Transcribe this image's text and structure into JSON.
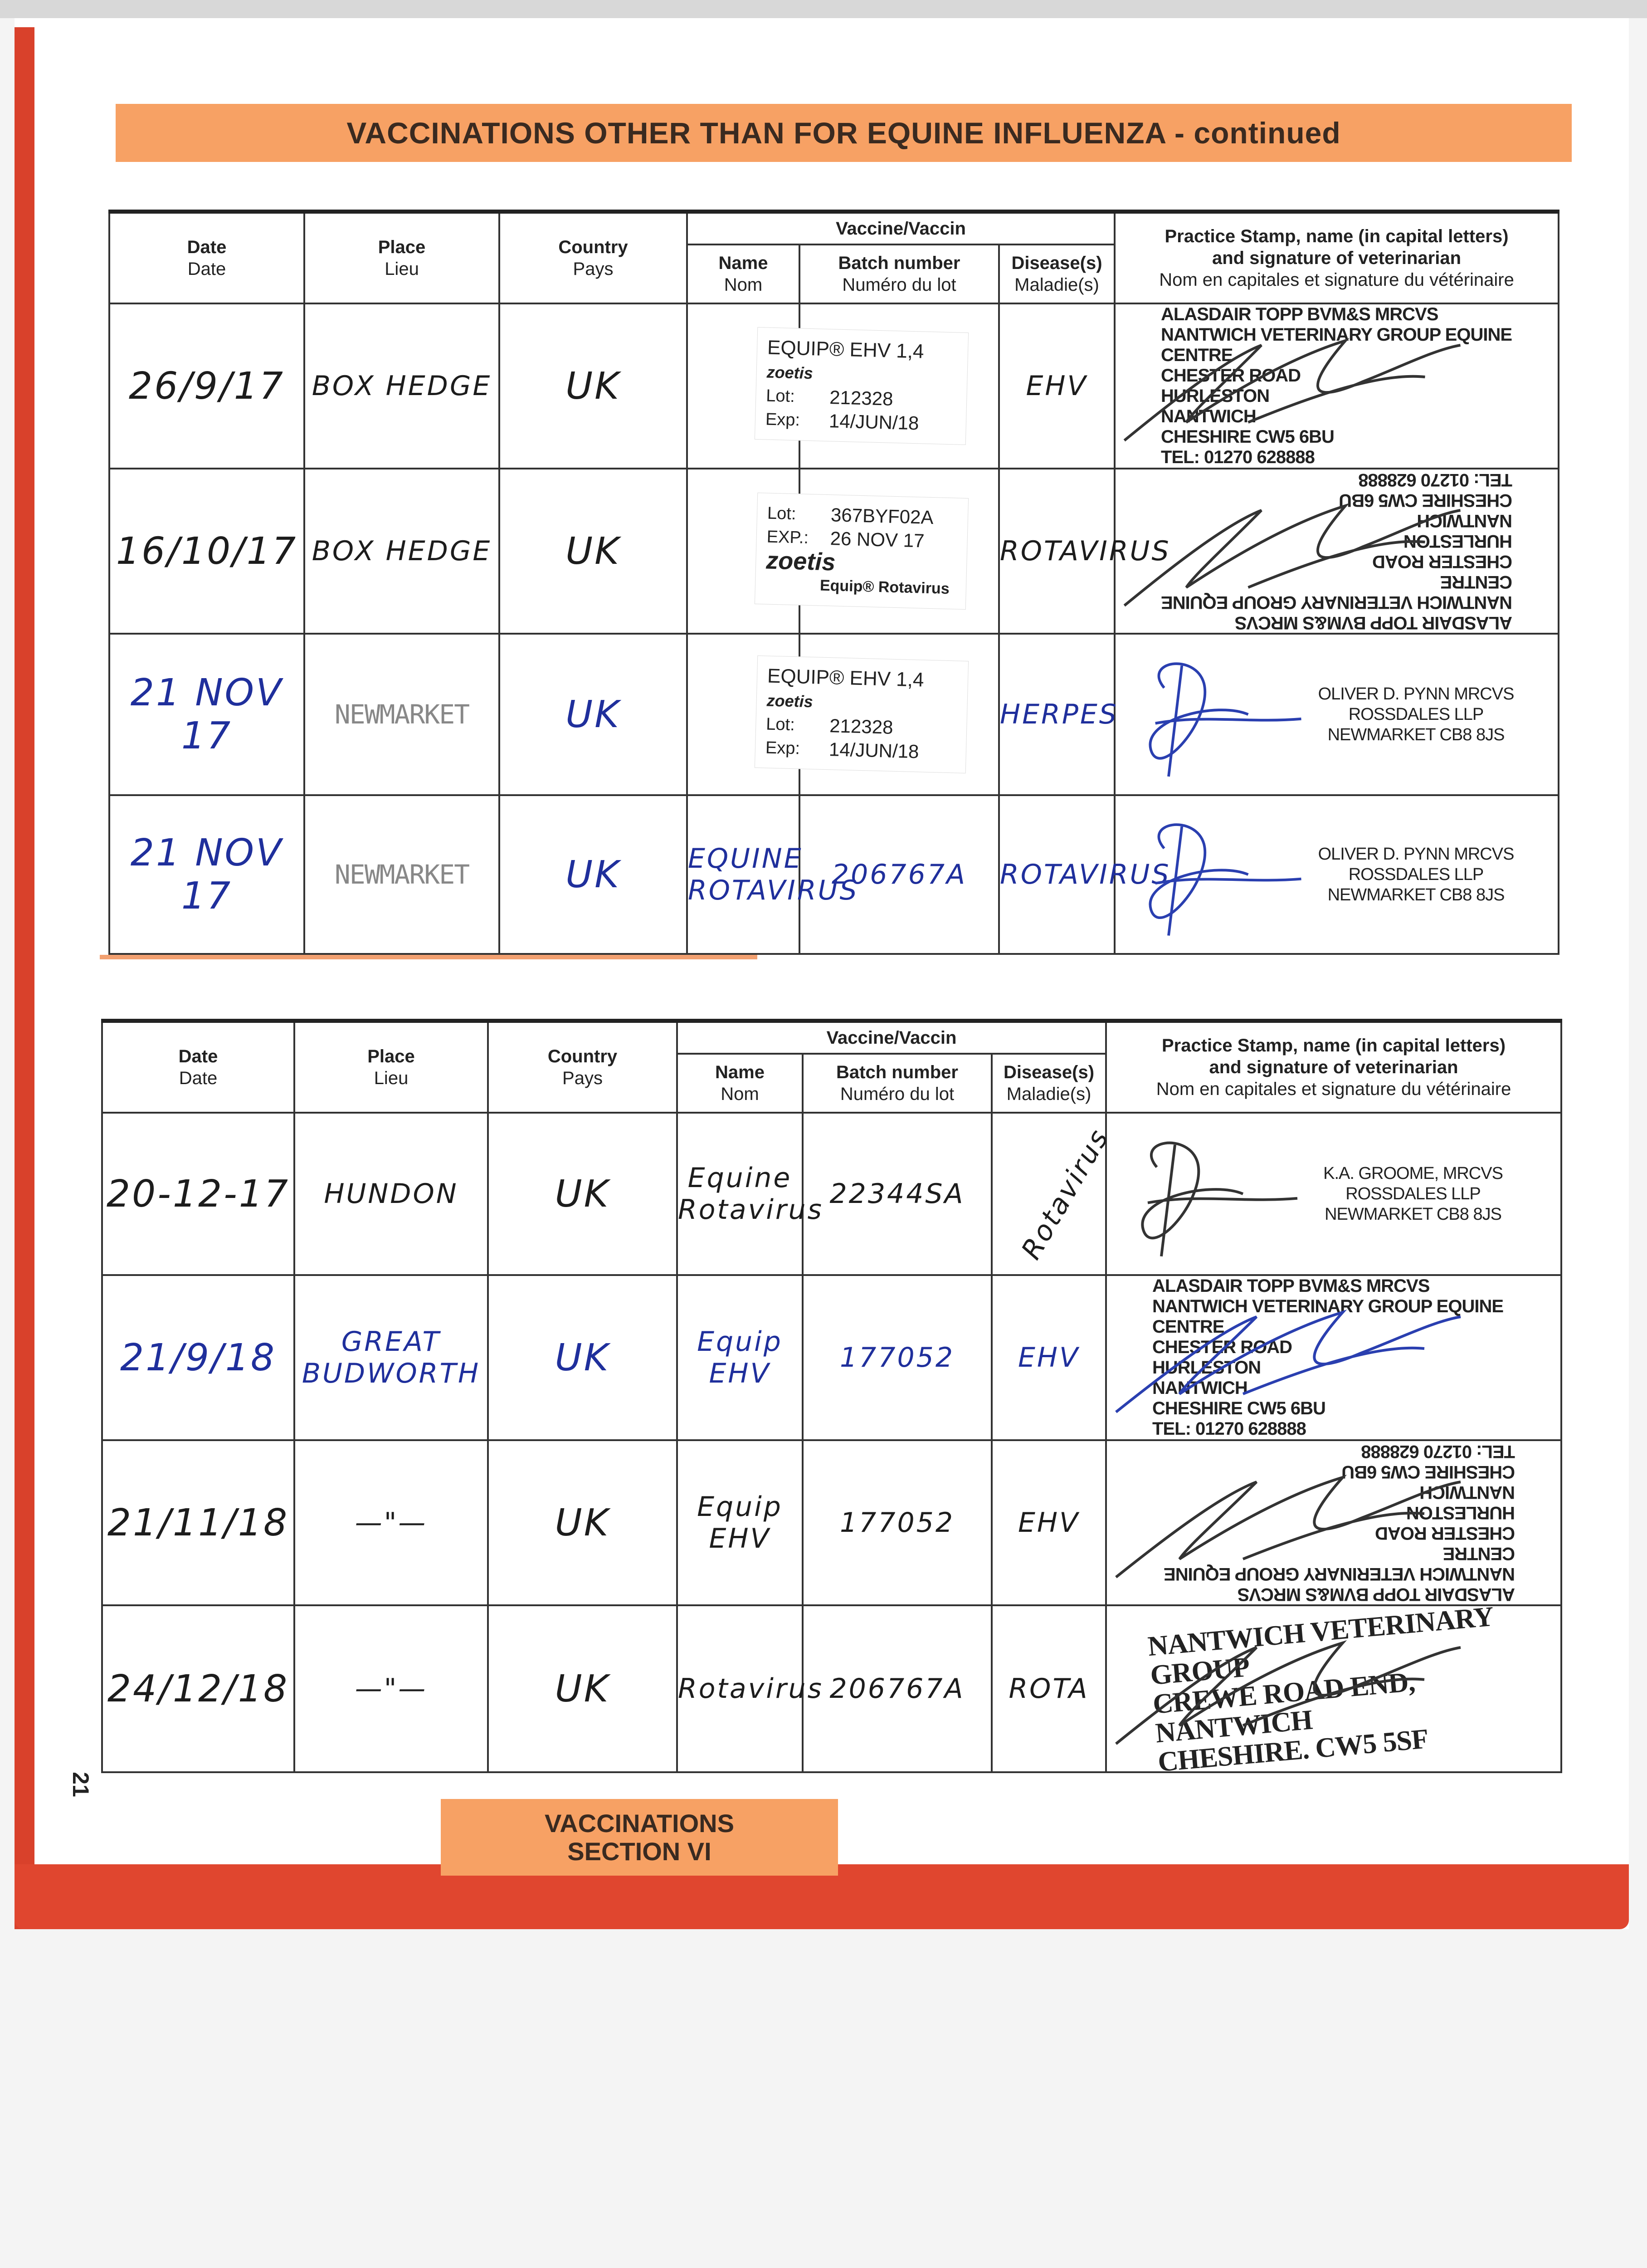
{
  "banner": "VACCINATIONS OTHER THAN FOR EQUINE INFLUENZA - continued",
  "headers": {
    "date": "Date",
    "date_fr": "Date",
    "place": "Place",
    "place_fr": "Lieu",
    "country": "Country",
    "country_fr": "Pays",
    "vaccine": "Vaccine/Vaccin",
    "name": "Name",
    "name_fr": "Nom",
    "batch": "Batch number",
    "batch_fr": "Numéro du lot",
    "disease": "Disease(s)",
    "disease_fr": "Maladie(s)",
    "stamp_1": "Practice Stamp, name (in capital letters)",
    "stamp_2": "and signature of veterinarian",
    "stamp_fr": "Nom en capitales et signature du vétérinaire"
  },
  "ink_colors": {
    "black": "#1c1c1c",
    "blue": "#1f2f9c",
    "banner": "#f7a164",
    "cover": "#e0462f"
  },
  "top_table": [
    {
      "date": "26/9/17",
      "place": "BOX HEDGE",
      "country": "UK",
      "ink": "black",
      "sticker": {
        "product": "EQUIP® EHV 1,4",
        "brand": "zoetis",
        "lot_label": "Lot:",
        "lot": "212328",
        "exp_label": "Exp:",
        "exp": "14/JUN/18"
      },
      "disease": "EHV",
      "stamp": {
        "style": "normal",
        "lines": [
          "ALASDAIR TOPP BVM&S MRCVS",
          "NANTWICH VETERINARY GROUP EQUINE CENTRE",
          "CHESTER ROAD",
          "HURLESTON",
          "NANTWICH",
          "CHESHIRE CW5 6BU",
          "TEL: 01270 628888"
        ]
      }
    },
    {
      "date": "16/10/17",
      "place": "BOX HEDGE",
      "country": "UK",
      "ink": "black",
      "sticker": {
        "lot_label": "Lot:",
        "lot": "367BYF02A",
        "exp_label": "EXP.:",
        "exp": "26 NOV 17",
        "brand": "zoetis",
        "product": "Equip® Rotavirus"
      },
      "disease": "ROTAVIRUS",
      "stamp": {
        "style": "inverted",
        "lines": [
          "ALASDAIR TOPP BVM&S MRCVS",
          "NANTWICH VETERINARY GROUP EQUINE CENTRE",
          "CHESTER ROAD",
          "HURLESTON",
          "NANTWICH",
          "CHESHIRE CW5 6BU",
          "TEL: 01270 628888"
        ]
      }
    },
    {
      "date": "21 NOV 17",
      "place": "NEWMARKET",
      "country": "UK",
      "ink": "blue",
      "place_style": "stamped",
      "sticker": {
        "product": "EQUIP® EHV 1,4",
        "brand": "zoetis",
        "lot_label": "Lot:",
        "lot": "212328",
        "exp_label": "Exp:",
        "exp": "14/JUN/18"
      },
      "disease": "HERPES",
      "stamp": {
        "style": "plain",
        "lines": [
          "OLIVER D. PYNN MRCVS",
          "ROSSDALES LLP",
          "NEWMARKET CB8 8JS"
        ]
      }
    },
    {
      "date": "21 NOV 17",
      "place": "NEWMARKET",
      "country": "UK",
      "ink": "blue",
      "place_style": "stamped",
      "name": "EQUINE ROTAVIRUS",
      "batch": "206767A",
      "disease": "ROTAVIRUS",
      "stamp": {
        "style": "plain",
        "lines": [
          "OLIVER D. PYNN MRCVS",
          "ROSSDALES LLP",
          "NEWMARKET CB8 8JS"
        ]
      }
    }
  ],
  "bottom_table": [
    {
      "date": "20-12-17",
      "place": "HUNDON",
      "country": "UK",
      "ink": "black",
      "name": "Equine Rotavirus",
      "batch": "22344SA",
      "disease": "Rotavirus",
      "disease_rotated": true,
      "stamp": {
        "style": "plain",
        "lines": [
          "K.A. GROOME, MRCVS",
          "ROSSDALES LLP",
          "NEWMARKET CB8 8JS"
        ]
      }
    },
    {
      "date": "21/9/18",
      "place": "GREAT BUDWORTH",
      "country": "UK",
      "ink": "blue",
      "name": "Equip EHV",
      "batch": "177052",
      "disease": "EHV",
      "stamp": {
        "style": "normal",
        "lines": [
          "ALASDAIR TOPP BVM&S MRCVS",
          "NANTWICH VETERINARY GROUP EQUINE CENTRE",
          "CHESTER ROAD",
          "HURLESTON",
          "NANTWICH",
          "CHESHIRE CW5 6BU",
          "TEL: 01270 628888"
        ]
      }
    },
    {
      "date": "21/11/18",
      "place": "—\"—",
      "country": "UK",
      "ink": "black",
      "name": "Equip EHV",
      "batch": "177052",
      "disease": "EHV",
      "stamp": {
        "style": "inverted",
        "lines": [
          "ALASDAIR TOPP BVM&S MRCVS",
          "NANTWICH VETERINARY GROUP EQUINE CENTRE",
          "CHESTER ROAD",
          "HURLESTON",
          "NANTWICH",
          "CHESHIRE CW5 6BU",
          "TEL: 01270 628888"
        ]
      }
    },
    {
      "date": "24/12/18",
      "place": "—\"—",
      "country": "UK",
      "ink": "black",
      "name": "Rotavirus",
      "batch": "206767A",
      "disease": "ROTA",
      "stamp": {
        "style": "serif",
        "lines": [
          "NANTWICH VETERINARY GROUP",
          "CREWE ROAD END, NANTWICH",
          "CHESHIRE. CW5 5SF"
        ]
      }
    }
  ],
  "page_number": "21",
  "section": {
    "line1": "VACCINATIONS",
    "line2": "SECTION VI"
  }
}
